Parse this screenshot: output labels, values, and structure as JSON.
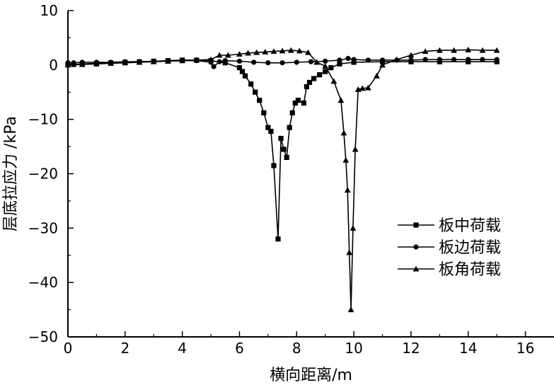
{
  "chart_data": {
    "type": "line",
    "xlabel": "横向距离/m",
    "ylabel": "层底拉应力 /kPa",
    "xlim": [
      0,
      17
    ],
    "ylim": [
      -50,
      10
    ],
    "xticks": [
      "0",
      "2",
      "4",
      "6",
      "8",
      "10",
      "12",
      "14",
      "16"
    ],
    "yticks": [
      "10",
      "0",
      "−10",
      "−20",
      "−30",
      "−40",
      "−50"
    ],
    "grid": false,
    "legend_position": "bottom-right",
    "series": [
      {
        "name": "板中荷载",
        "marker": "square",
        "x": [
          0,
          0.2,
          0.5,
          1,
          1.5,
          2,
          2.5,
          3,
          3.5,
          4,
          4.5,
          5,
          5.5,
          6,
          6.1,
          6.2,
          6.4,
          6.55,
          6.7,
          6.85,
          7.0,
          7.1,
          7.2,
          7.35,
          7.45,
          7.55,
          7.65,
          7.75,
          7.85,
          7.95,
          8.05,
          8.25,
          8.35,
          8.45,
          8.6,
          8.8,
          9.0,
          9.2,
          9.5,
          10,
          11,
          12,
          13,
          14,
          15
        ],
        "values": [
          0.1,
          0.1,
          0.2,
          0.3,
          0.4,
          0.5,
          0.6,
          0.7,
          0.8,
          0.9,
          0.9,
          0.8,
          0.4,
          -0.5,
          -1.2,
          -2.0,
          -3.5,
          -5.0,
          -6.5,
          -8.8,
          -11.5,
          -12.2,
          -18.5,
          -32.0,
          -13.5,
          -15.5,
          -17.0,
          -11.5,
          -8.8,
          -7.0,
          -6.5,
          -7.0,
          -4.0,
          -3.2,
          -2.5,
          -1.8,
          -1.2,
          -0.5,
          0.2,
          0.5,
          0.6,
          0.6,
          0.6,
          0.6,
          0.6
        ]
      },
      {
        "name": "板边荷载",
        "marker": "circle",
        "x": [
          0,
          0.2,
          0.5,
          1,
          1.5,
          2,
          2.5,
          3,
          3.5,
          4,
          4.5,
          5,
          5.1,
          5.3,
          5.5,
          6,
          6.5,
          7,
          7.5,
          8,
          8.5,
          9,
          9.5,
          9.8,
          10,
          10.5,
          11,
          11.5,
          12,
          12.5,
          13,
          13.5,
          14,
          14.5,
          15
        ],
        "values": [
          0.4,
          0.4,
          0.5,
          0.5,
          0.5,
          0.6,
          0.6,
          0.7,
          0.7,
          0.8,
          0.8,
          0.5,
          -0.3,
          0.6,
          0.8,
          0.7,
          0.5,
          0.4,
          0.4,
          0.5,
          0.6,
          0.7,
          0.9,
          1.2,
          1.0,
          0.9,
          0.9,
          0.9,
          0.9,
          1.0,
          1.0,
          1.0,
          1.0,
          1.0,
          1.0
        ]
      },
      {
        "name": "板角荷载",
        "marker": "triangle",
        "x": [
          0,
          0.5,
          1,
          1.5,
          2,
          2.5,
          3,
          3.5,
          4,
          4.5,
          5,
          5.3,
          5.6,
          6,
          6.3,
          6.6,
          6.9,
          7.2,
          7.5,
          7.8,
          8.1,
          8.4,
          8.7,
          9.0,
          9.3,
          9.55,
          9.65,
          9.72,
          9.78,
          9.84,
          9.9,
          9.97,
          10.05,
          10.15,
          10.3,
          10.5,
          10.8,
          11.0,
          11.5,
          12,
          12.5,
          13,
          13.5,
          14,
          14.5,
          15
        ],
        "values": [
          0,
          0.1,
          0.2,
          0.3,
          0.4,
          0.5,
          0.6,
          0.7,
          0.8,
          0.9,
          1.0,
          1.8,
          1.8,
          2.0,
          2.2,
          2.3,
          2.4,
          2.5,
          2.6,
          2.7,
          2.6,
          2.3,
          0.5,
          -0.2,
          -3.0,
          -6.5,
          -12.5,
          -17.5,
          -23.0,
          -34.5,
          -45.0,
          -30.0,
          -15.5,
          -4.5,
          -4.3,
          -4.2,
          -2.0,
          0.0,
          1.0,
          1.8,
          2.5,
          2.7,
          2.7,
          2.8,
          2.7,
          2.7
        ]
      }
    ],
    "annotations": []
  }
}
